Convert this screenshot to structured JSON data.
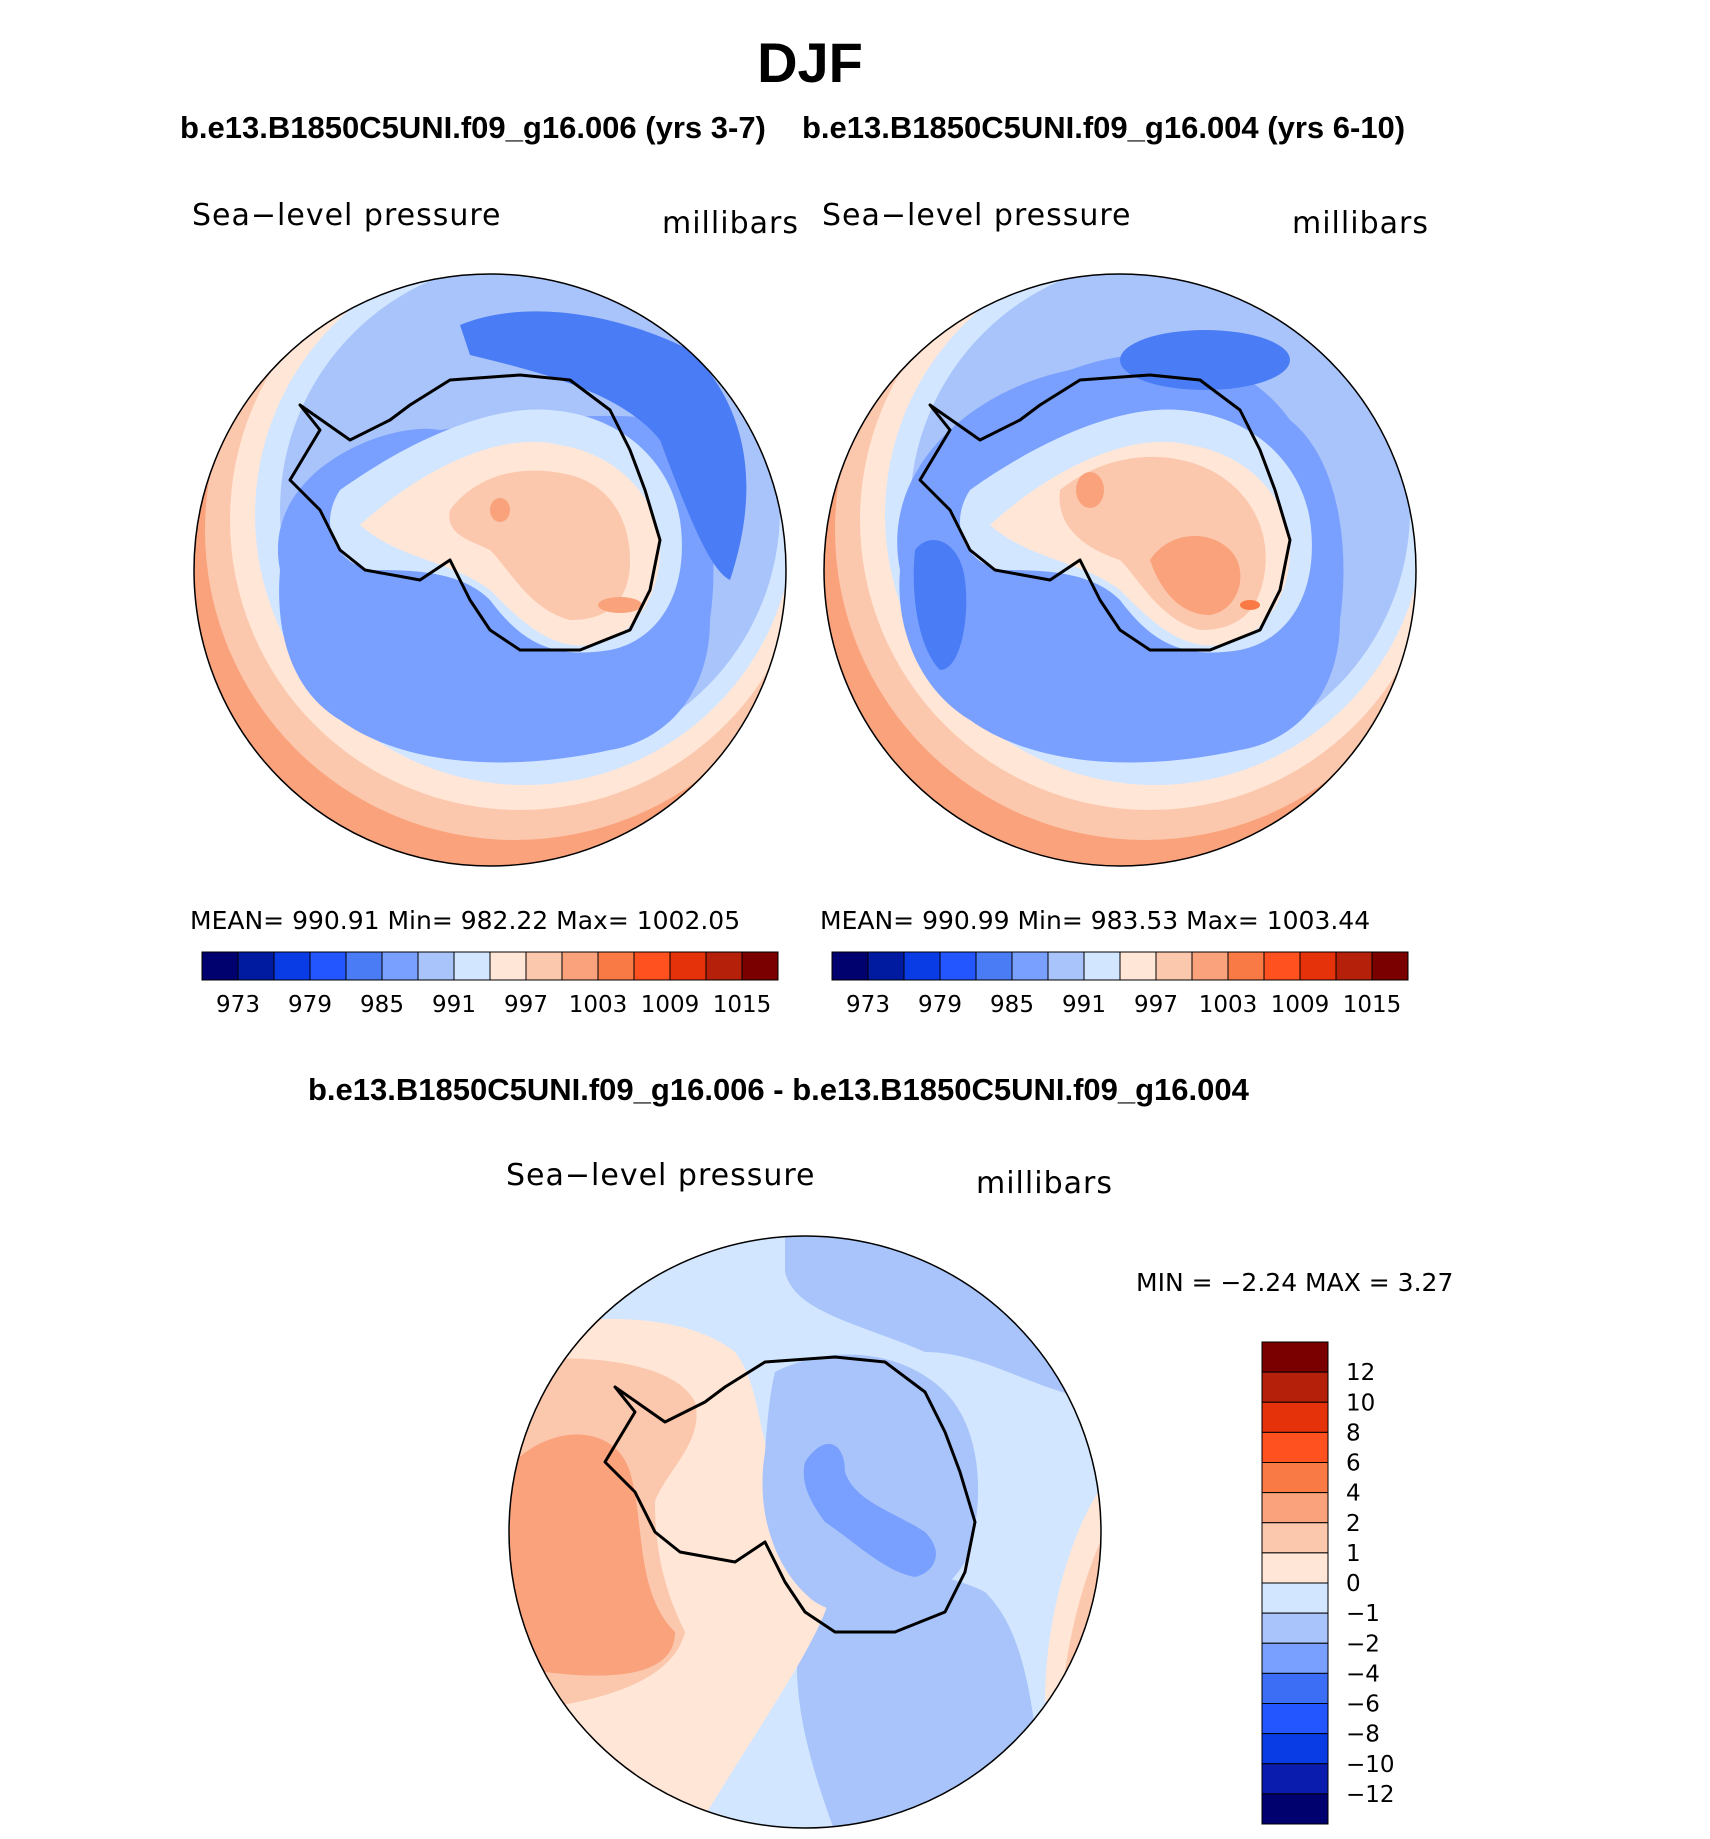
{
  "title": "DJF",
  "subtitle_left": "b.e13.B1850C5UNI.f09_g16.006 (yrs 3-7)",
  "subtitle_right": "b.e13.B1850C5UNI.f09_g16.004 (yrs 6-10)",
  "diff_title": "b.e13.B1850C5UNI.f09_g16.006 - b.e13.B1850C5UNI.f09_g16.004",
  "colors": {
    "abs_scale": [
      "#00006e",
      "#001aa0",
      "#0a3ce6",
      "#2356ff",
      "#4a7cf5",
      "#7aa0ff",
      "#a9c4fa",
      "#d2e6ff",
      "#ffe6d6",
      "#fcc8ad",
      "#f9a27c",
      "#fa7a46",
      "#ff5020",
      "#e6320a",
      "#b4200a",
      "#7a0000"
    ],
    "diff_scale": [
      "#00006e",
      "#0a1cae",
      "#0a3ce6",
      "#2356ff",
      "#3c6ef5",
      "#7aa0ff",
      "#a9c4fa",
      "#d2e6ff",
      "#ffe6d6",
      "#fcc8ad",
      "#f9a27c",
      "#fa7a46",
      "#ff5020",
      "#e6320a",
      "#b4200a",
      "#7a0000"
    ]
  },
  "chart_data": [
    {
      "type": "heatmap",
      "panel": "top-left",
      "variable": "Sea−level pressure",
      "units": "millibars",
      "stats_text": "MEAN=  990.91   Min=  982.22   Max=  1002.05",
      "mean": 990.91,
      "min": 982.22,
      "max": 1002.05,
      "colorbar_ticks": [
        "973",
        "979",
        "985",
        "991",
        "997",
        "1003",
        "1009",
        "1015"
      ],
      "colorbar_levels": [
        973,
        976,
        979,
        982,
        985,
        988,
        991,
        994,
        997,
        1000,
        1003,
        1006,
        1009,
        1012,
        1015
      ]
    },
    {
      "type": "heatmap",
      "panel": "top-right",
      "variable": "Sea−level pressure",
      "units": "millibars",
      "stats_text": "MEAN=  990.99   Min=  983.53   Max=  1003.44",
      "mean": 990.99,
      "min": 983.53,
      "max": 1003.44,
      "colorbar_ticks": [
        "973",
        "979",
        "985",
        "991",
        "997",
        "1003",
        "1009",
        "1015"
      ],
      "colorbar_levels": [
        973,
        976,
        979,
        982,
        985,
        988,
        991,
        994,
        997,
        1000,
        1003,
        1006,
        1009,
        1012,
        1015
      ]
    },
    {
      "type": "heatmap",
      "panel": "bottom-difference",
      "variable": "Sea−level pressure",
      "units": "millibars",
      "stats_text": "MIN =   −2.24  MAX =       3.27",
      "min": -2.24,
      "max": 3.27,
      "colorbar_ticks": [
        "12",
        "10",
        "8",
        "6",
        "4",
        "2",
        "1",
        "0",
        "−1",
        "−2",
        "−4",
        "−6",
        "−8",
        "−10",
        "−12"
      ],
      "colorbar_levels": [
        12,
        10,
        8,
        6,
        4,
        2,
        1,
        0,
        -1,
        -2,
        -4,
        -6,
        -8,
        -10,
        -12
      ]
    }
  ]
}
